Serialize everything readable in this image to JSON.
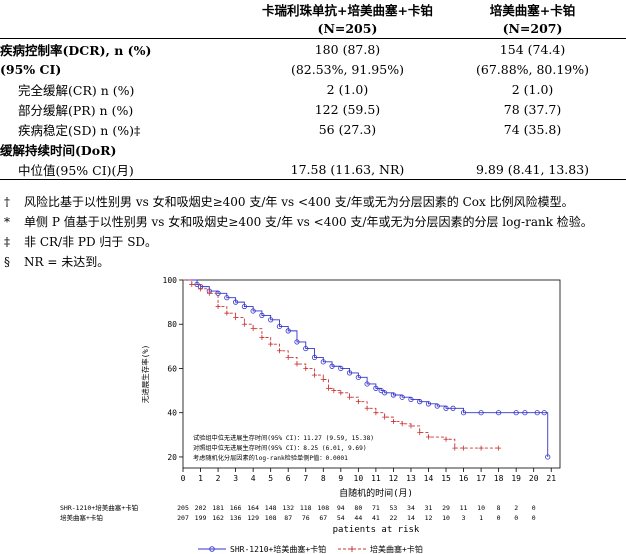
{
  "table": {
    "col2_header_line1": "卡瑞利珠单抗+培美曲塞+卡铂",
    "col2_header_line2": "(N=205)",
    "col3_header_line1": "培美曲塞+卡铂",
    "col3_header_line2": "(N=207)",
    "rows": [
      {
        "label": "疾病控制率(DCR), n (%)",
        "a": "180 (87.8)",
        "b": "154 (74.4)"
      },
      {
        "label": "(95% CI)",
        "a": "(82.53%, 91.95%)",
        "b": "(67.88%, 80.19%)"
      },
      {
        "label": "完全缓解(CR) n (%)",
        "a": "2 (1.0)",
        "b": "2 (1.0)"
      },
      {
        "label": "部分缓解(PR) n (%)",
        "a": "122 (59.5)",
        "b": "78 (37.7)"
      },
      {
        "label": "疾病稳定(SD) n (%)‡",
        "a": "56 (27.3)",
        "b": "74 (35.8)"
      },
      {
        "label": "缓解持续时间(DoR)",
        "a": "",
        "b": ""
      },
      {
        "label": "中位值(95% CI)(月)",
        "a": "17.58 (11.63, NR)",
        "b": "9.89 (8.41, 13.83)"
      }
    ]
  },
  "footnotes": [
    {
      "sym": "†",
      "text": "风险比基于以性别男 vs 女和吸烟史≥400 支/年 vs <400 支/年或无为分层因素的 Cox 比例风险模型。"
    },
    {
      "sym": "*",
      "text": "单侧 P 值基于以性别男 vs 女和吸烟史≥400 支/年 vs <400 支/年或无为分层因素的分层 log-rank 检验。"
    },
    {
      "sym": "‡",
      "text": "非 CR/非 PD 归于 SD。"
    },
    {
      "sym": "§",
      "text": "NR = 未达到。"
    }
  ],
  "chart_data": {
    "type": "line",
    "ylabel": "无进展生存率(%)",
    "xlabel": "自随机的时间(月)",
    "xlim": [
      0,
      21.5
    ],
    "ylim": [
      15,
      100
    ],
    "xticks": [
      0,
      1,
      2,
      3,
      4,
      5,
      6,
      7,
      8,
      9,
      10,
      11,
      12,
      13,
      14,
      15,
      16,
      17,
      18,
      19,
      20,
      21
    ],
    "yticks": [
      20,
      40,
      60,
      80,
      100
    ],
    "annotations": [
      "试验组中位无进展生存时间(95% CI)：11.27 (9.59, 15.38)",
      "对照组中位无进展生存时间(95% CI)：8.25 (6.01, 9.69)",
      "考虑随机化分层因素的log-rank检验单侧P值：0.0001"
    ],
    "series": [
      {
        "name": "SHR-1210+培美曲塞+卡铂",
        "color": "#3333cc",
        "marker": "circle",
        "x": [
          0,
          0.8,
          1.0,
          1.5,
          2.0,
          2.5,
          3.0,
          3.5,
          4.0,
          4.5,
          5.0,
          5.5,
          6.0,
          6.5,
          7.0,
          7.5,
          8.0,
          8.5,
          9.0,
          9.5,
          10.0,
          10.5,
          11.0,
          11.3,
          11.5,
          12.0,
          12.5,
          13.0,
          13.5,
          14.0,
          14.5,
          15.0,
          15.4,
          16.0,
          17.0,
          18.0,
          19.0,
          19.5,
          20.2,
          20.6,
          20.8
        ],
        "y": [
          100,
          98,
          97,
          95,
          94,
          92,
          90,
          88,
          86,
          84,
          82,
          79,
          77,
          72,
          69,
          65,
          63,
          61,
          60,
          58,
          56,
          53,
          51,
          50,
          49,
          48,
          47,
          46,
          45,
          44,
          43,
          42,
          42,
          40,
          40,
          40,
          40,
          40,
          40,
          40,
          20
        ]
      },
      {
        "name": "培美曲塞+卡铂",
        "color": "#cc3333",
        "marker": "plus",
        "x": [
          0,
          0.5,
          1.0,
          1.5,
          2.0,
          2.5,
          3.0,
          3.5,
          4.0,
          4.5,
          5.0,
          5.5,
          6.0,
          6.5,
          7.0,
          7.5,
          8.0,
          8.3,
          8.6,
          9.0,
          9.5,
          10.0,
          10.5,
          11.0,
          11.5,
          12.0,
          12.5,
          13.0,
          13.5,
          14.0,
          15.0,
          15.5,
          16.0,
          17.0,
          18.0
        ],
        "y": [
          100,
          98,
          96,
          94,
          88,
          85,
          83,
          80,
          78,
          74,
          71,
          68,
          65,
          62,
          60,
          57,
          55,
          51,
          50,
          49,
          47,
          45,
          42,
          40,
          38,
          36,
          35,
          34,
          31,
          29,
          28,
          24,
          24,
          24,
          24
        ]
      }
    ],
    "risk_table": {
      "title": "patients at risk",
      "rows": [
        {
          "label": "SHR-1210+培美曲塞+卡铂",
          "values": [
            "205",
            "202",
            "181",
            "166",
            "164",
            "148",
            "132",
            "118",
            "108",
            "94",
            "80",
            "71",
            "53",
            "34",
            "31",
            "29",
            "11",
            "10",
            "8",
            "2",
            "0"
          ]
        },
        {
          "label": "培美曲塞+卡铂",
          "values": [
            "207",
            "199",
            "162",
            "136",
            "129",
            "108",
            "87",
            "76",
            "67",
            "54",
            "44",
            "41",
            "22",
            "14",
            "12",
            "10",
            "3",
            "1",
            "0",
            "0",
            "0"
          ]
        }
      ]
    },
    "legend": [
      "SHR-1210+培美曲塞+卡铂",
      "培美曲塞+卡铂"
    ]
  }
}
